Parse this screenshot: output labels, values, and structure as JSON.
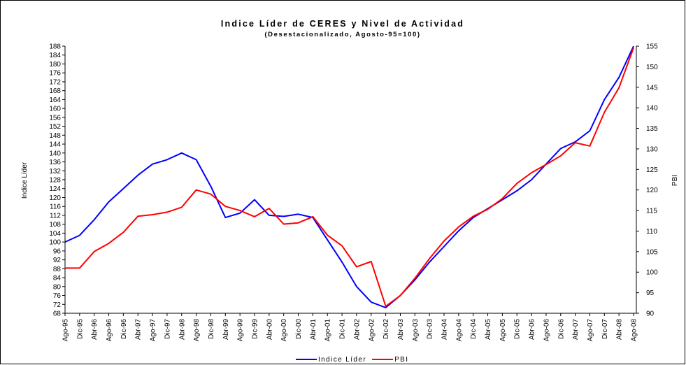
{
  "chart_data": {
    "type": "line",
    "title": "Indice Líder de CERES y Nivel de Actividad",
    "subtitle": "(Desestacionalizado, Agosto-95=100)",
    "y_label": "Indice Líder",
    "y2_label": "PBI",
    "categories": [
      "Ago-95",
      "Dic-95",
      "Abr-96",
      "Ago-96",
      "Dic-96",
      "Abr-97",
      "Ago-97",
      "Dic-97",
      "Abr-98",
      "Ago-98",
      "Dic-98",
      "Abr-99",
      "Ago-99",
      "Dic-99",
      "Abr-00",
      "Ago-00",
      "Dic-00",
      "Abr-01",
      "Ago-01",
      "Dic-01",
      "Abr-02",
      "Ago-02",
      "Dic-02",
      "Abr-03",
      "Ago-03",
      "Dic-03",
      "Abr-04",
      "Ago-04",
      "Dic-04",
      "Abr-05",
      "Ago-05",
      "Dic-05",
      "Abr-06",
      "Ago-06",
      "Dic-06",
      "Abr-07",
      "Ago-07",
      "Dic-07",
      "Abr-08",
      "Ago-08"
    ],
    "series": [
      {
        "name": "Indice Líder",
        "color": "#0000ff",
        "axis": "y",
        "values": [
          100,
          103,
          110,
          118,
          124,
          130,
          135,
          137,
          140,
          137,
          125,
          111,
          113,
          119,
          112,
          111.5,
          112.5,
          111,
          101,
          91,
          80,
          73,
          70.5,
          76,
          83,
          91,
          98,
          105,
          111,
          115,
          119,
          123,
          128,
          135,
          142,
          145,
          150,
          164,
          174,
          188
        ]
      },
      {
        "name": "PBI",
        "color": "#ff0000",
        "axis": "y2",
        "values": [
          101,
          101,
          105,
          107,
          109.7,
          113.6,
          114,
          114.6,
          115.8,
          120,
          119,
          116,
          115,
          113.5,
          115.5,
          111.7,
          112,
          113.5,
          109,
          106.4,
          101.3,
          102.6,
          91.7,
          94.3,
          98.5,
          103.3,
          107.6,
          111,
          113.6,
          115.3,
          117.9,
          121.6,
          124.2,
          126.2,
          128.3,
          131.5,
          130.7,
          138.9,
          144.9,
          154.6
        ]
      }
    ],
    "ylim": [
      68,
      188
    ],
    "yticks": [
      68,
      72,
      76,
      80,
      84,
      88,
      92,
      96,
      100,
      104,
      108,
      112,
      116,
      120,
      124,
      128,
      132,
      136,
      140,
      144,
      148,
      152,
      156,
      160,
      164,
      168,
      172,
      176,
      180,
      184,
      188
    ],
    "y2lim": [
      90,
      155
    ],
    "y2ticks": [
      90,
      95,
      100,
      105,
      110,
      115,
      120,
      125,
      130,
      135,
      140,
      145,
      150,
      155
    ],
    "legend": "bottom"
  }
}
